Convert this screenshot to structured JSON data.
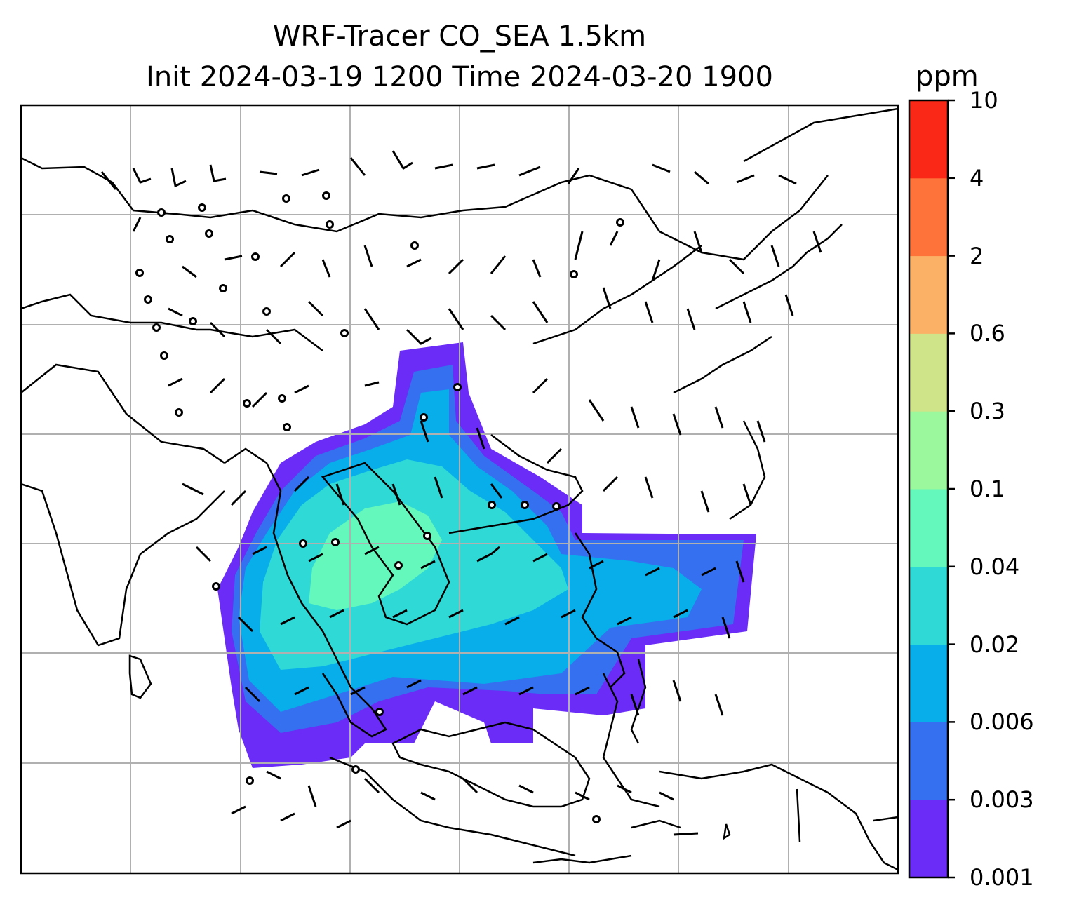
{
  "title": {
    "line1": "WRF-Tracer CO_SEA 1.5km",
    "line2": "Init 2024-03-19 1200 Time 2024-03-20 1900"
  },
  "colorbar": {
    "units": "ppm",
    "ticks": [
      "0.001",
      "0.003",
      "0.006",
      "0.02",
      "0.04",
      "0.1",
      "0.3",
      "0.6",
      "2",
      "4",
      "10"
    ],
    "colors": [
      "#6a2cf6",
      "#3470f0",
      "#07aeea",
      "#2fd9d6",
      "#64f8bc",
      "#9bf89c",
      "#cfe388",
      "#fbb267",
      "#fd7339",
      "#fa2816"
    ]
  },
  "map": {
    "grid": "on",
    "field": "CO_SEA tracer concentration",
    "overlay": "wind barbs"
  }
}
